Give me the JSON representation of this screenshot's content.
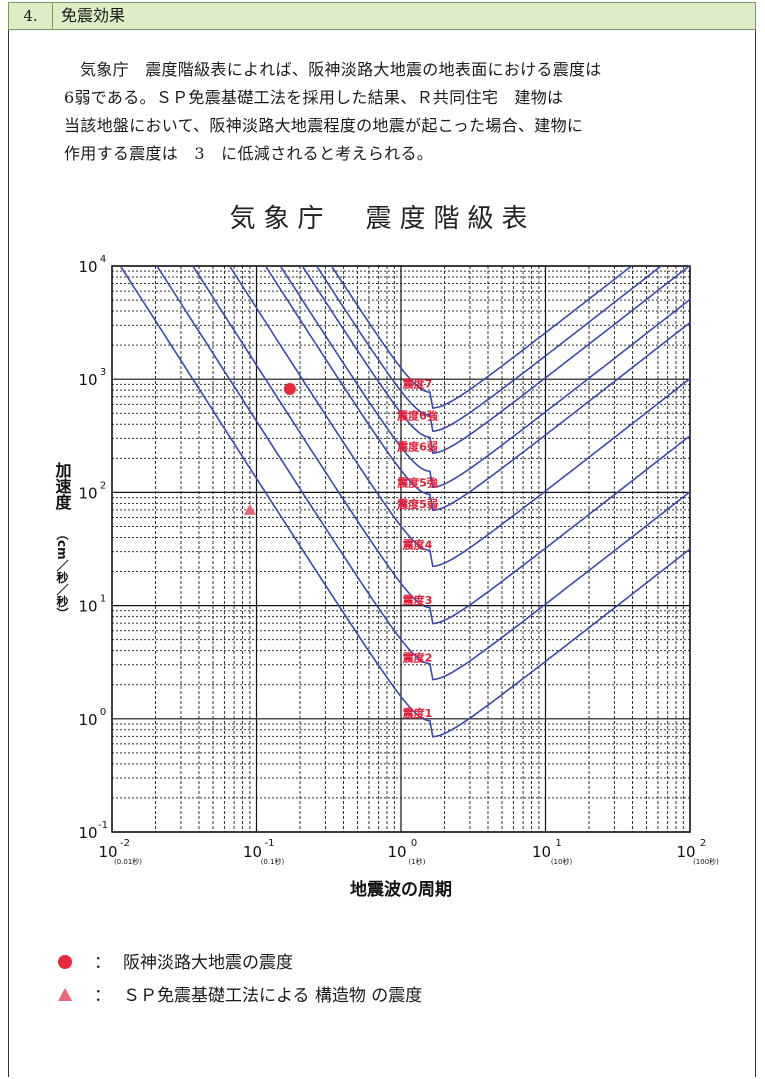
{
  "section": {
    "number": "4.",
    "title": "免震効果"
  },
  "paragraph": [
    "気象庁　震度階級表によれば、阪神淡路大地震の地表面における震度は",
    "6弱である。ＳＰ免震基礎工法を採用した結果、Ｒ共同住宅　建物は",
    "当該地盤において、阪神淡路大地震程度の地震が起こった場合、建物に",
    "作用する震度は　3　に低減されると考えられる。"
  ],
  "chart_data": {
    "type": "line",
    "title": "気象庁　震度階級表",
    "xlabel": "地震波の周期",
    "ylabel_main": "加速度",
    "ylabel_unit": "（cm／秒／秒）",
    "xscale": "log",
    "yscale": "log",
    "xlim": [
      0.01,
      100
    ],
    "ylim": [
      0.1,
      10000
    ],
    "x_ticks": [
      {
        "base": "10",
        "exp": "-2",
        "sub": "(0.01秒)",
        "value": 0.01
      },
      {
        "base": "10",
        "exp": "-1",
        "sub": "(0.1秒)",
        "value": 0.1
      },
      {
        "base": "10",
        "exp": "0",
        "sub": "(1秒)",
        "value": 1
      },
      {
        "base": "10",
        "exp": "1",
        "sub": "(10秒)",
        "value": 10
      },
      {
        "base": "10",
        "exp": "2",
        "sub": "(100秒)",
        "value": 100
      }
    ],
    "y_ticks": [
      {
        "base": "10",
        "exp": "4",
        "value": 10000
      },
      {
        "base": "10",
        "exp": "3",
        "value": 1000
      },
      {
        "base": "10",
        "exp": "2",
        "value": 100
      },
      {
        "base": "10",
        "exp": "1",
        "value": 10
      },
      {
        "base": "10",
        "exp": "0",
        "value": 1
      },
      {
        "base": "10",
        "exp": "-1",
        "value": 0.1
      }
    ],
    "grid": true,
    "curves": [
      {
        "min_x": 1.6,
        "min_y": 0.5
      },
      {
        "min_x": 1.6,
        "min_y": 1.6
      },
      {
        "min_x": 1.6,
        "min_y": 5
      },
      {
        "min_x": 1.6,
        "min_y": 16
      },
      {
        "min_x": 1.6,
        "min_y": 50
      },
      {
        "min_x": 1.6,
        "min_y": 80
      },
      {
        "min_x": 1.6,
        "min_y": 160
      },
      {
        "min_x": 1.6,
        "min_y": 250
      },
      {
        "min_x": 1.6,
        "min_y": 400
      }
    ],
    "zone_labels": [
      {
        "text": "震度1",
        "x": 1.3,
        "y": 1.1
      },
      {
        "text": "震度2",
        "x": 1.3,
        "y": 3.4
      },
      {
        "text": "震度3",
        "x": 1.3,
        "y": 11
      },
      {
        "text": "震度4",
        "x": 1.3,
        "y": 34
      },
      {
        "text": "震度5弱",
        "x": 1.3,
        "y": 77
      },
      {
        "text": "震度5強",
        "x": 1.3,
        "y": 120
      },
      {
        "text": "震度6弱",
        "x": 1.3,
        "y": 250
      },
      {
        "text": "震度6強",
        "x": 1.3,
        "y": 470
      },
      {
        "text": "震度7",
        "x": 1.3,
        "y": 900
      }
    ],
    "points": [
      {
        "name": "阪神淡路大地震の震度",
        "marker": "circle",
        "x": 0.17,
        "y": 820,
        "color": "#e62a3a"
      },
      {
        "name": "ＳＰ免震基礎工法による 構造物 の震度",
        "marker": "triangle",
        "x": 0.09,
        "y": 70,
        "color": "#e8677a"
      }
    ],
    "curve_color": "#3b4aa8",
    "label_color": "#e0203a"
  },
  "legend": [
    {
      "marker": "circle",
      "colon": "：",
      "text": "阪神淡路大地震の震度"
    },
    {
      "marker": "triangle",
      "colon": "：",
      "text": "ＳＰ免震基礎工法による 構造物 の震度"
    }
  ]
}
